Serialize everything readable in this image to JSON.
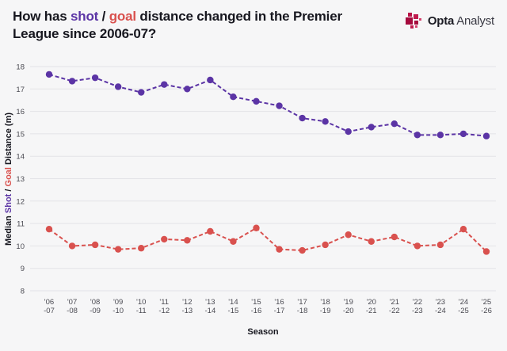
{
  "header": {
    "title": {
      "pre": "How has ",
      "shot": "shot",
      "sep": " / ",
      "goal": "goal",
      "rest": " distance changed in the Premier League since 2006-07?"
    },
    "brand": {
      "primary": "Opta",
      "secondary": "Analyst",
      "logo_color": "#a50a3d"
    }
  },
  "chart_data": {
    "type": "line",
    "title": "How has shot / goal distance changed in the Premier League since 2006-07?",
    "xlabel": "Season",
    "ylabel_parts": {
      "pre": "Median ",
      "shot": "Shot",
      "sep": " / ",
      "goal": "Goal",
      "post": " Distance (m)"
    },
    "ylim": [
      8,
      18
    ],
    "yticks": [
      8,
      9,
      10,
      11,
      12,
      13,
      14,
      15,
      16,
      17,
      18
    ],
    "grid": true,
    "legend": "none",
    "categories": [
      "'06\n-07",
      "'07\n-08",
      "'08\n-09",
      "'09\n-10",
      "'10\n-11",
      "'11\n-12",
      "'12\n-13",
      "'13\n-14",
      "'14\n-15",
      "'15\n-16",
      "'16\n-17",
      "'17\n-18",
      "'18\n-19",
      "'19\n-20",
      "'20\n-21",
      "'21\n-22",
      "'22\n-23",
      "'23\n-24",
      "'24\n-25",
      "'25\n-26"
    ],
    "series": [
      {
        "name": "shot",
        "color": "#5b34a5",
        "values": [
          17.65,
          17.35,
          17.5,
          17.1,
          16.85,
          17.2,
          17.0,
          17.4,
          16.65,
          16.45,
          16.25,
          15.7,
          15.55,
          15.1,
          15.3,
          15.45,
          14.95,
          14.95,
          15.0,
          14.9
        ]
      },
      {
        "name": "goal",
        "color": "#d9514e",
        "values": [
          10.75,
          10.0,
          10.05,
          9.85,
          9.9,
          10.3,
          10.25,
          10.65,
          10.2,
          10.8,
          9.85,
          9.8,
          10.05,
          10.5,
          10.2,
          10.4,
          10.0,
          10.05,
          10.75,
          9.75
        ]
      }
    ]
  }
}
